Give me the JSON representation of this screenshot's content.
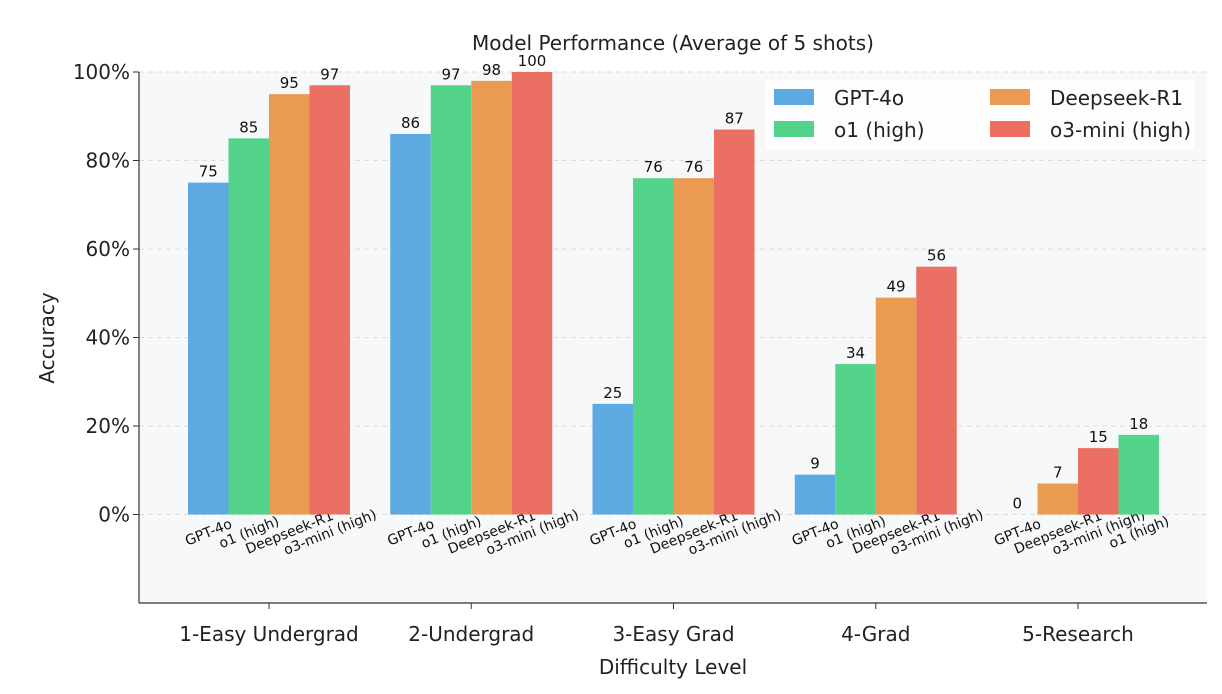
{
  "chart_data": {
    "type": "bar",
    "title": "Model Performance (Average of 5 shots)",
    "xlabel": "Difficulty Level",
    "ylabel": "Accuracy",
    "ylim": [
      -20,
      100
    ],
    "yticks": [
      0,
      20,
      40,
      60,
      80,
      100
    ],
    "ytick_labels": [
      "0%",
      "20%",
      "40%",
      "60%",
      "80%",
      "100%"
    ],
    "grid": true,
    "legend_position": "top-right",
    "colors": {
      "GPT-4o": "#5DA9E1",
      "o1 (high)": "#53D48A",
      "Deepseek-R1": "#EB9A52",
      "o3-mini (high)": "#EC6F63"
    },
    "legend": [
      "GPT-4o",
      "Deepseek-R1",
      "o1 (high)",
      "o3-mini (high)"
    ],
    "groups": [
      {
        "category": "1-Easy Undergrad",
        "bars": [
          {
            "model": "GPT-4o",
            "value": 75
          },
          {
            "model": "o1 (high)",
            "value": 85
          },
          {
            "model": "Deepseek-R1",
            "value": 95
          },
          {
            "model": "o3-mini (high)",
            "value": 97
          }
        ]
      },
      {
        "category": "2-Undergrad",
        "bars": [
          {
            "model": "GPT-4o",
            "value": 86
          },
          {
            "model": "o1 (high)",
            "value": 97
          },
          {
            "model": "Deepseek-R1",
            "value": 98
          },
          {
            "model": "o3-mini (high)",
            "value": 100
          }
        ]
      },
      {
        "category": "3-Easy Grad",
        "bars": [
          {
            "model": "GPT-4o",
            "value": 25
          },
          {
            "model": "o1 (high)",
            "value": 76
          },
          {
            "model": "Deepseek-R1",
            "value": 76
          },
          {
            "model": "o3-mini (high)",
            "value": 87
          }
        ]
      },
      {
        "category": "4-Grad",
        "bars": [
          {
            "model": "GPT-4o",
            "value": 9
          },
          {
            "model": "o1 (high)",
            "value": 34
          },
          {
            "model": "Deepseek-R1",
            "value": 49
          },
          {
            "model": "o3-mini (high)",
            "value": 56
          }
        ]
      },
      {
        "category": "5-Research",
        "bars": [
          {
            "model": "GPT-4o",
            "value": 0
          },
          {
            "model": "Deepseek-R1",
            "value": 7
          },
          {
            "model": "o3-mini (high)",
            "value": 15
          },
          {
            "model": "o1 (high)",
            "value": 18
          }
        ]
      }
    ]
  }
}
